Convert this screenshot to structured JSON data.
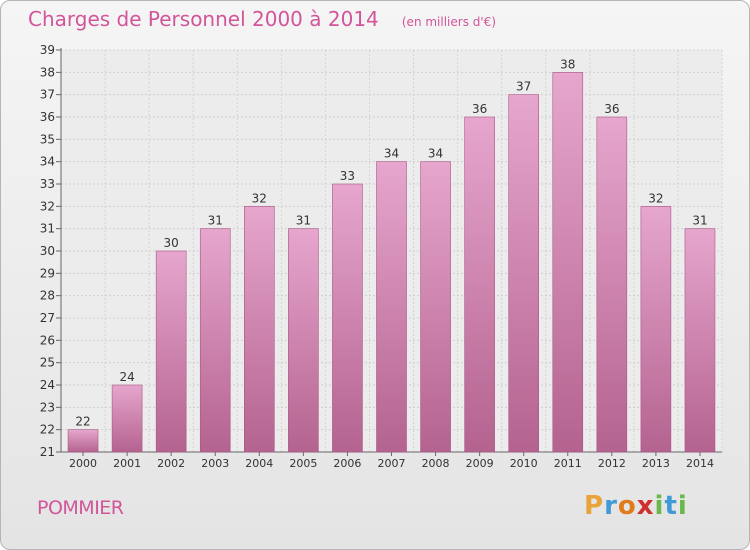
{
  "chart_data": {
    "type": "bar",
    "title": "Charges de Personnel 2000 à 2014",
    "subtitle": "(en milliers d'€)",
    "categories": [
      "2000",
      "2001",
      "2002",
      "2003",
      "2004",
      "2005",
      "2006",
      "2007",
      "2008",
      "2009",
      "2010",
      "2011",
      "2012",
      "2013",
      "2014"
    ],
    "values": [
      22,
      24,
      30,
      31,
      32,
      31,
      33,
      34,
      34,
      36,
      37,
      38,
      36,
      32,
      31
    ],
    "ylim": [
      21,
      39
    ],
    "yticks": [
      21,
      22,
      23,
      24,
      25,
      26,
      27,
      28,
      29,
      30,
      31,
      32,
      33,
      34,
      35,
      36,
      37,
      38,
      39
    ],
    "grid": true,
    "bar_color": "#d580b0"
  },
  "commune": "POMMIER",
  "brand": {
    "letters": [
      "P",
      "r",
      "o",
      "x",
      "i",
      "t",
      "i"
    ],
    "colors": [
      "#e8a33a",
      "#3f9ad6",
      "#e07c1c",
      "#d02f2f",
      "#6ab84a",
      "#3f9ad6",
      "#6ab84a"
    ]
  }
}
